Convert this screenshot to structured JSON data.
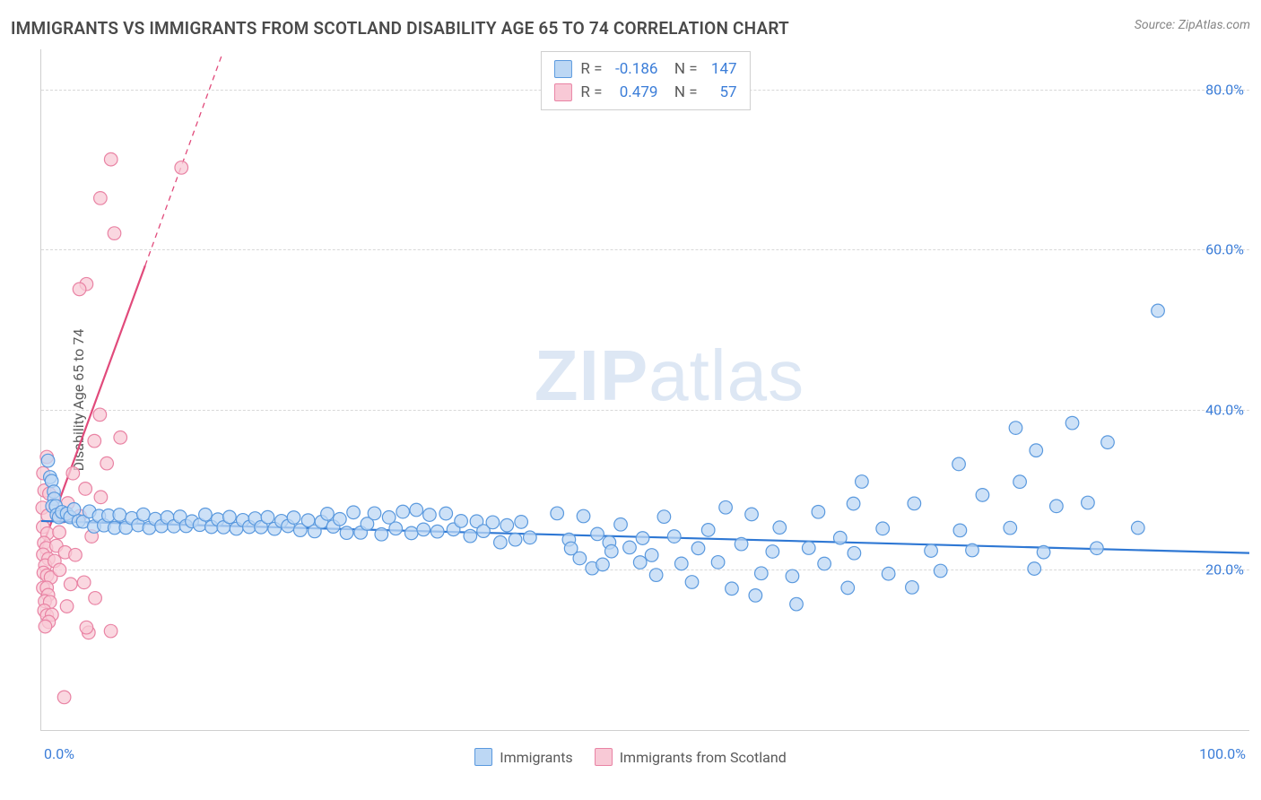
{
  "title": "IMMIGRANTS VS IMMIGRANTS FROM SCOTLAND DISABILITY AGE 65 TO 74 CORRELATION CHART",
  "source": "Source: ZipAtlas.com",
  "ylabel": "Disability Age 65 to 74",
  "watermark_a": "ZIP",
  "watermark_b": "atlas",
  "chart": {
    "type": "scatter",
    "xlim": [
      0,
      100
    ],
    "ylim": [
      0,
      85
    ],
    "xticks": [
      {
        "v": 0,
        "label": "0.0%"
      },
      {
        "v": 100,
        "label": "100.0%"
      }
    ],
    "yticks": [
      {
        "v": 20,
        "label": "20.0%"
      },
      {
        "v": 40,
        "label": "40.0%"
      },
      {
        "v": 60,
        "label": "60.0%"
      },
      {
        "v": 80,
        "label": "80.0%"
      }
    ],
    "grid_color": "#d8d8d8",
    "background": "#ffffff",
    "marker_radius": 7.3,
    "marker_stroke_width": 1.2,
    "series": [
      {
        "name": "Immigrants",
        "fill": "#bcd7f4",
        "stroke": "#5a99de",
        "line_color": "#2f78d4",
        "line_width": 2.2,
        "trend": {
          "x1": 0,
          "y1": 26.1,
          "x2": 100,
          "y2": 22.1
        },
        "R": "-0.186",
        "N": "147",
        "points": [
          [
            0.56,
            33.64
          ],
          [
            0.73,
            31.58
          ],
          [
            0.86,
            31.1
          ],
          [
            1.04,
            29.77
          ],
          [
            1.07,
            28.88
          ],
          [
            0.91,
            27.95
          ],
          [
            1.21,
            27.97
          ],
          [
            1.28,
            26.88
          ],
          [
            1.46,
            26.58
          ],
          [
            1.71,
            27.23
          ],
          [
            2.12,
            27.03
          ],
          [
            2.4,
            26.58
          ],
          [
            2.71,
            27.57
          ],
          [
            3.09,
            26.09
          ],
          [
            3.46,
            26.02
          ],
          [
            3.99,
            27.3
          ],
          [
            4.37,
            25.42
          ],
          [
            4.78,
            26.73
          ],
          [
            5.19,
            25.56
          ],
          [
            5.56,
            26.79
          ],
          [
            6.07,
            25.25
          ],
          [
            6.48,
            26.88
          ],
          [
            7.0,
            25.27
          ],
          [
            7.5,
            26.46
          ],
          [
            8.02,
            25.58
          ],
          [
            8.45,
            26.92
          ],
          [
            8.94,
            25.24
          ],
          [
            9.44,
            26.36
          ],
          [
            9.95,
            25.46
          ],
          [
            10.43,
            26.56
          ],
          [
            10.98,
            25.44
          ],
          [
            11.49,
            26.65
          ],
          [
            11.99,
            25.48
          ],
          [
            12.47,
            26.06
          ],
          [
            13.12,
            25.62
          ],
          [
            13.58,
            26.9
          ],
          [
            14.09,
            25.36
          ],
          [
            14.62,
            26.3
          ],
          [
            15.09,
            25.32
          ],
          [
            15.58,
            26.61
          ],
          [
            16.15,
            25.14
          ],
          [
            16.69,
            26.22
          ],
          [
            17.22,
            25.36
          ],
          [
            17.7,
            26.43
          ],
          [
            18.19,
            25.33
          ],
          [
            18.74,
            26.58
          ],
          [
            19.31,
            25.13
          ],
          [
            19.88,
            26.11
          ],
          [
            20.42,
            25.47
          ],
          [
            20.9,
            26.54
          ],
          [
            21.44,
            24.96
          ],
          [
            22.09,
            26.19
          ],
          [
            22.63,
            24.82
          ],
          [
            23.2,
            26.0
          ],
          [
            23.68,
            27.0
          ],
          [
            24.17,
            25.41
          ],
          [
            24.71,
            26.34
          ],
          [
            25.28,
            24.62
          ],
          [
            25.84,
            27.18
          ],
          [
            26.44,
            24.65
          ],
          [
            26.98,
            25.75
          ],
          [
            27.58,
            27.06
          ],
          [
            28.16,
            24.44
          ],
          [
            28.78,
            26.56
          ],
          [
            29.34,
            25.17
          ],
          [
            29.93,
            27.26
          ],
          [
            30.64,
            24.59
          ],
          [
            31.05,
            27.49
          ],
          [
            31.64,
            25.04
          ],
          [
            32.14,
            26.87
          ],
          [
            32.79,
            24.79
          ],
          [
            33.5,
            27.04
          ],
          [
            34.12,
            25.05
          ],
          [
            34.75,
            26.1
          ],
          [
            35.51,
            24.23
          ],
          [
            36.04,
            26.06
          ],
          [
            36.6,
            24.85
          ],
          [
            37.37,
            25.94
          ],
          [
            38.0,
            23.44
          ],
          [
            38.55,
            25.57
          ],
          [
            39.24,
            23.78
          ],
          [
            39.73,
            25.99
          ],
          [
            40.45,
            24.04
          ],
          [
            42.7,
            27.06
          ],
          [
            43.68,
            23.78
          ],
          [
            44.88,
            26.71
          ],
          [
            46.03,
            24.48
          ],
          [
            47.02,
            23.42
          ],
          [
            43.85,
            22.68
          ],
          [
            44.57,
            21.45
          ],
          [
            45.6,
            20.2
          ],
          [
            46.47,
            20.67
          ],
          [
            47.2,
            22.32
          ],
          [
            47.96,
            25.67
          ],
          [
            48.7,
            22.8
          ],
          [
            49.57,
            20.94
          ],
          [
            49.78,
            23.96
          ],
          [
            50.53,
            21.84
          ],
          [
            50.9,
            19.36
          ],
          [
            51.55,
            26.64
          ],
          [
            52.39,
            24.18
          ],
          [
            52.99,
            20.78
          ],
          [
            53.86,
            18.48
          ],
          [
            54.38,
            22.7
          ],
          [
            55.21,
            24.98
          ],
          [
            56.02,
            20.96
          ],
          [
            56.65,
            27.8
          ],
          [
            57.16,
            17.66
          ],
          [
            57.95,
            23.22
          ],
          [
            58.8,
            26.94
          ],
          [
            59.12,
            16.81
          ],
          [
            59.6,
            19.57
          ],
          [
            60.53,
            22.29
          ],
          [
            61.12,
            25.29
          ],
          [
            62.17,
            19.22
          ],
          [
            62.51,
            15.72
          ],
          [
            63.53,
            22.73
          ],
          [
            64.32,
            27.24
          ],
          [
            64.82,
            20.77
          ],
          [
            66.13,
            24.0
          ],
          [
            66.76,
            17.76
          ],
          [
            67.23,
            28.27
          ],
          [
            67.29,
            22.09
          ],
          [
            67.92,
            31.02
          ],
          [
            69.65,
            25.16
          ],
          [
            70.13,
            19.52
          ],
          [
            72.08,
            17.82
          ],
          [
            72.26,
            28.29
          ],
          [
            73.65,
            22.39
          ],
          [
            74.44,
            19.88
          ],
          [
            75.95,
            33.21
          ],
          [
            76.05,
            24.93
          ],
          [
            77.06,
            22.45
          ],
          [
            77.91,
            29.35
          ],
          [
            80.2,
            25.24
          ],
          [
            80.66,
            37.73
          ],
          [
            81.0,
            31.0
          ],
          [
            82.2,
            20.15
          ],
          [
            82.35,
            34.92
          ],
          [
            82.97,
            22.21
          ],
          [
            84.03,
            27.96
          ],
          [
            85.34,
            38.34
          ],
          [
            86.63,
            28.39
          ],
          [
            87.37,
            22.71
          ],
          [
            88.27,
            35.93
          ],
          [
            90.78,
            25.25
          ],
          [
            92.43,
            52.36
          ]
        ]
      },
      {
        "name": "Immigrants from Scotland",
        "fill": "#f8c9d6",
        "stroke": "#e983a4",
        "line_color": "#e14a7b",
        "line_width": 2.2,
        "trend": {
          "x1": 0,
          "y1": 22.5,
          "x2": 8.6,
          "y2": 58.0
        },
        "trend_dash": {
          "x1": 8.6,
          "y1": 58.0,
          "x2": 15.0,
          "y2": 84.5
        },
        "R": "0.479",
        "N": "57",
        "points": [
          [
            0.46,
            34.1
          ],
          [
            0.16,
            32.07
          ],
          [
            0.26,
            29.91
          ],
          [
            0.66,
            29.51
          ],
          [
            0.1,
            27.76
          ],
          [
            0.54,
            26.77
          ],
          [
            0.14,
            25.36
          ],
          [
            0.5,
            24.55
          ],
          [
            0.23,
            23.37
          ],
          [
            0.41,
            22.72
          ],
          [
            0.15,
            21.91
          ],
          [
            0.59,
            21.38
          ],
          [
            0.32,
            20.56
          ],
          [
            0.19,
            19.65
          ],
          [
            0.48,
            19.3
          ],
          [
            0.79,
            19.05
          ],
          [
            0.15,
            17.75
          ],
          [
            0.46,
            17.77
          ],
          [
            0.57,
            16.86
          ],
          [
            0.3,
            16.08
          ],
          [
            0.72,
            15.99
          ],
          [
            0.25,
            14.92
          ],
          [
            0.47,
            14.32
          ],
          [
            0.88,
            14.4
          ],
          [
            0.62,
            13.5
          ],
          [
            0.33,
            12.93
          ],
          [
            1.1,
            21.11
          ],
          [
            1.25,
            23.01
          ],
          [
            1.52,
            20.0
          ],
          [
            1.49,
            24.7
          ],
          [
            1.78,
            26.69
          ],
          [
            1.97,
            22.2
          ],
          [
            2.2,
            28.33
          ],
          [
            2.43,
            18.22
          ],
          [
            2.12,
            15.45
          ],
          [
            2.82,
            21.87
          ],
          [
            2.62,
            32.06
          ],
          [
            3.19,
            26.71
          ],
          [
            3.54,
            18.44
          ],
          [
            3.65,
            30.13
          ],
          [
            3.92,
            12.17
          ],
          [
            4.17,
            24.18
          ],
          [
            4.4,
            36.1
          ],
          [
            4.85,
            39.38
          ],
          [
            4.93,
            29.08
          ],
          [
            5.43,
            33.3
          ],
          [
            5.76,
            12.36
          ],
          [
            1.9,
            4.1
          ],
          [
            3.74,
            12.81
          ],
          [
            4.46,
            16.48
          ],
          [
            5.77,
            71.26
          ],
          [
            4.89,
            66.42
          ],
          [
            3.74,
            55.69
          ],
          [
            6.05,
            62.03
          ],
          [
            3.16,
            55.05
          ],
          [
            11.6,
            70.23
          ],
          [
            6.55,
            36.53
          ]
        ]
      }
    ]
  },
  "legend_bottom": [
    {
      "label": "Immigrants",
      "fill": "#bcd7f4",
      "stroke": "#5a99de"
    },
    {
      "label": "Immigrants from Scotland",
      "fill": "#f8c9d6",
      "stroke": "#e983a4"
    }
  ]
}
